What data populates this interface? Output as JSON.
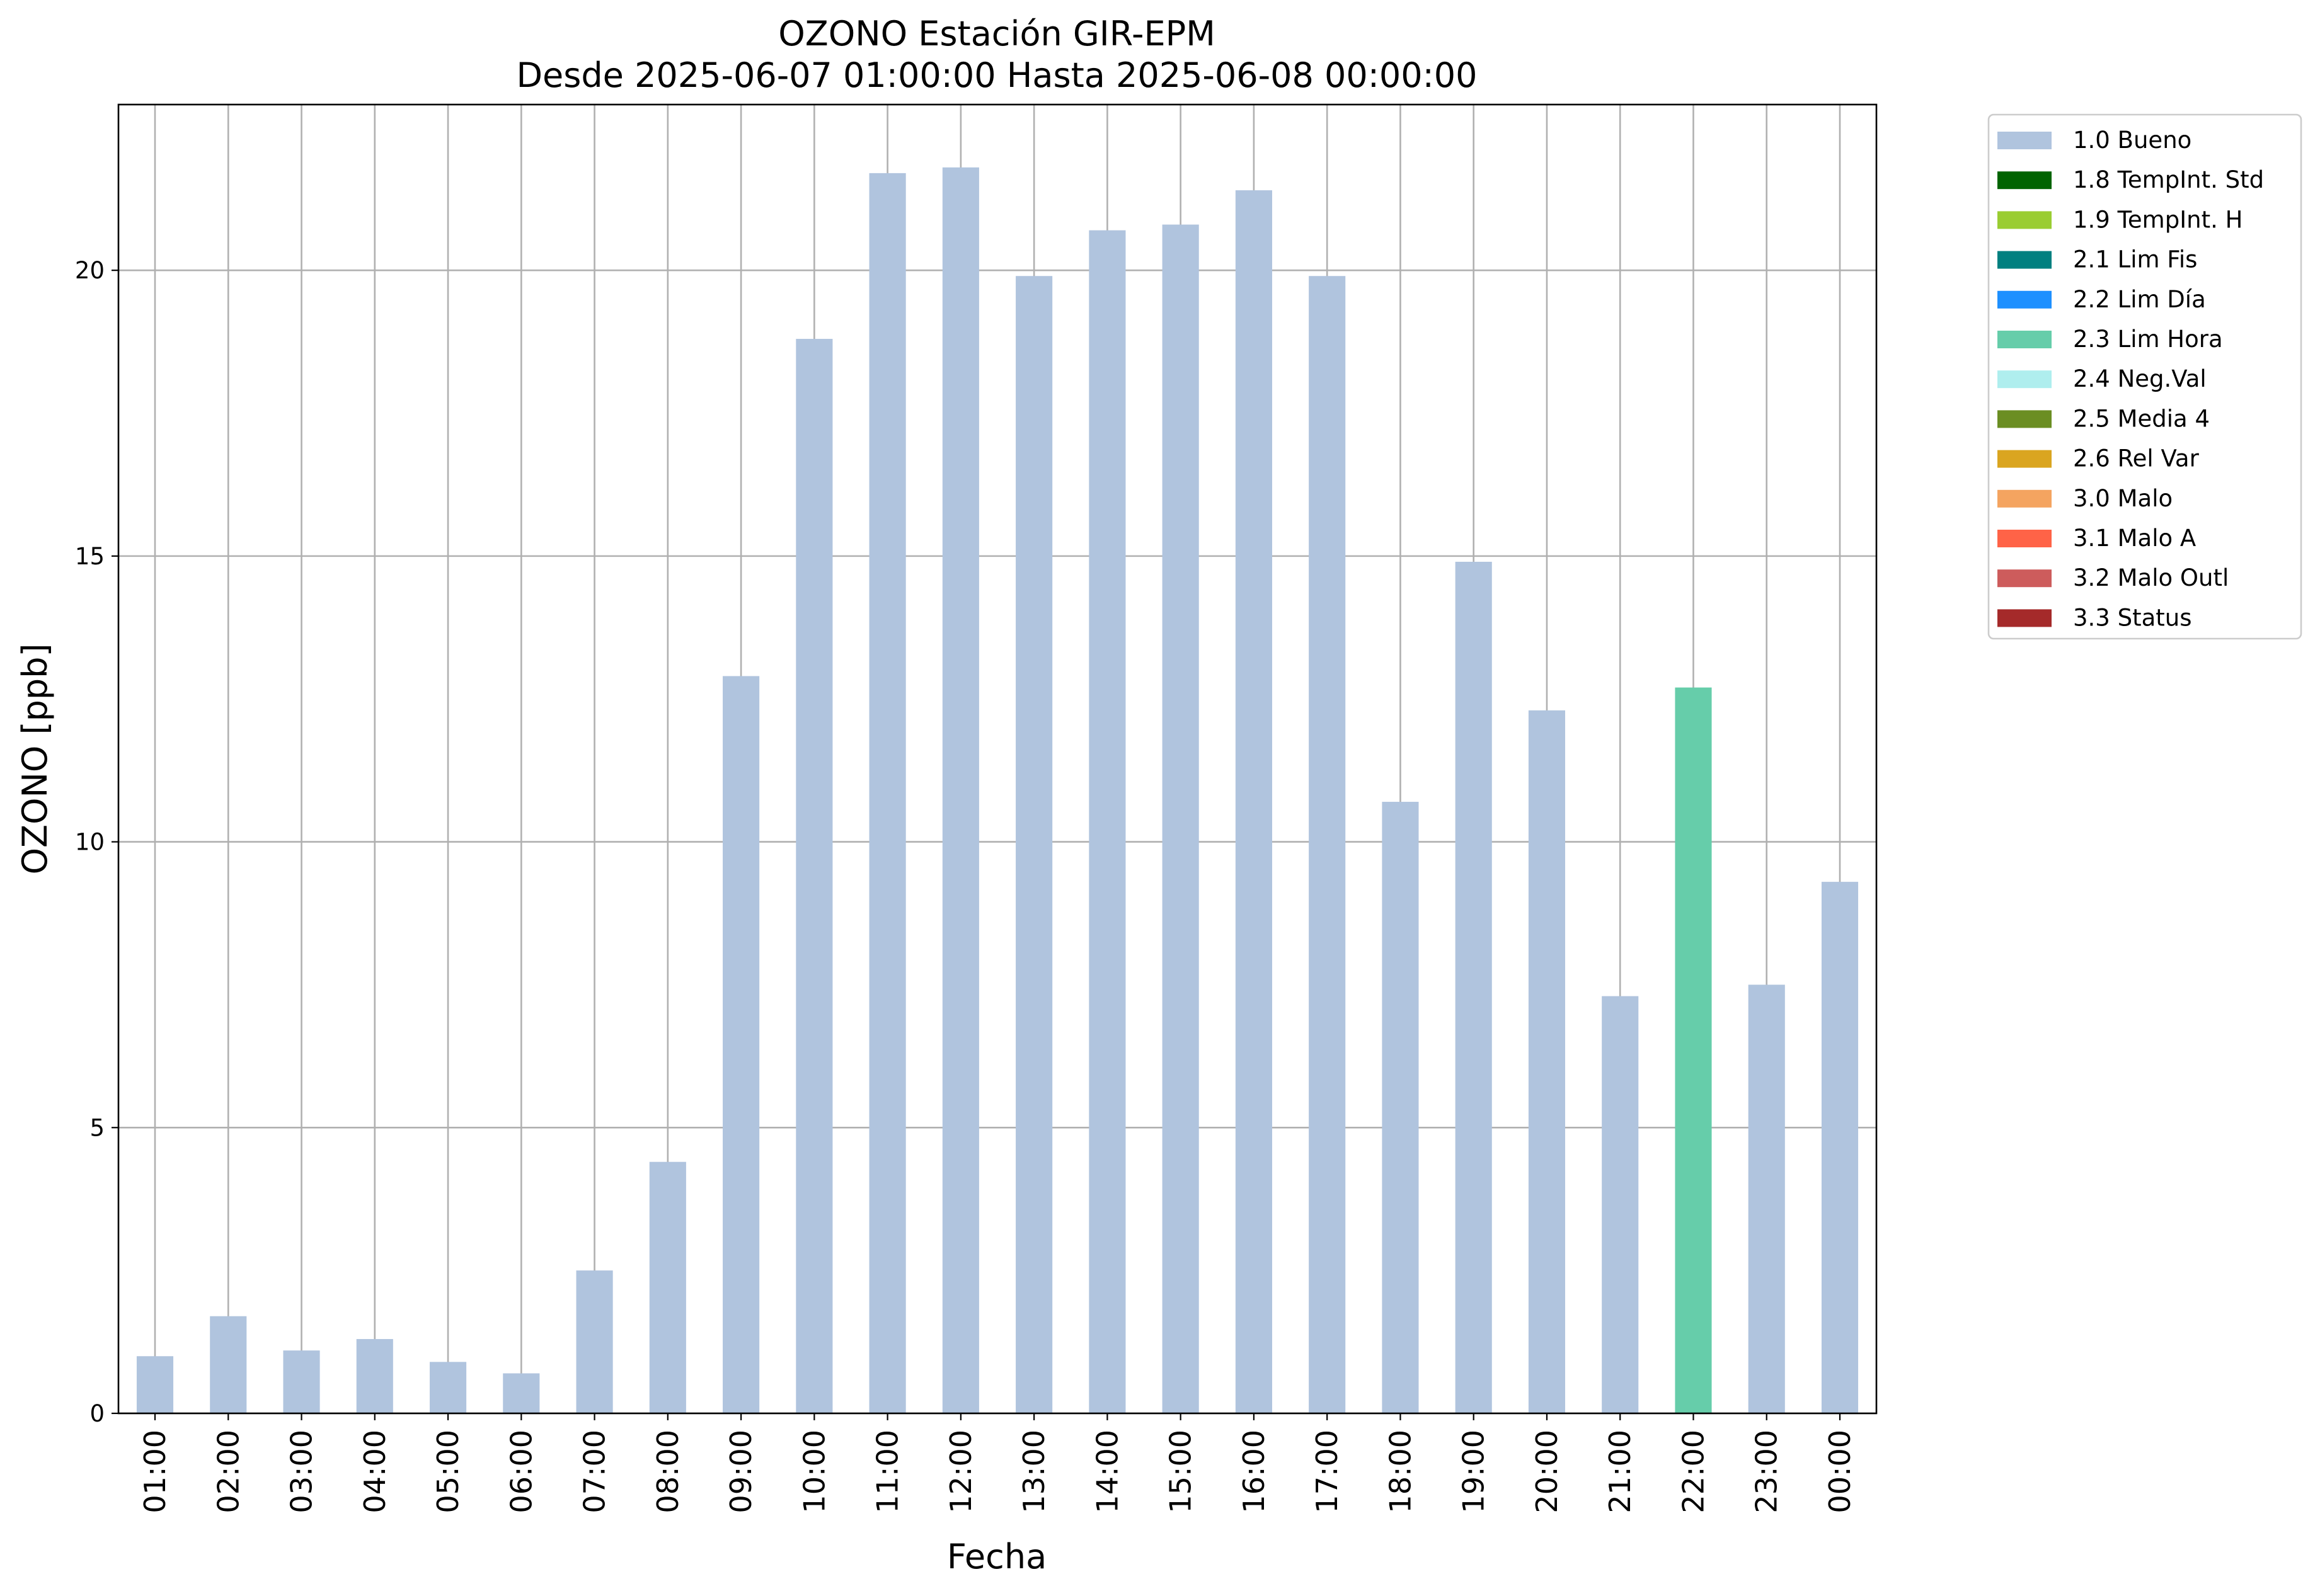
{
  "chart_data": {
    "type": "bar",
    "title": "OZONO Estación GIR-EPM",
    "subtitle": "Desde 2025-06-07 01:00:00 Hasta 2025-06-08 00:00:00",
    "xlabel": "Fecha",
    "ylabel": "OZONO [ppb]",
    "ylim": [
      0,
      22.9
    ],
    "yticks": [
      0,
      5,
      10,
      15,
      20
    ],
    "grid": true,
    "legend_placement": "outside-top-right",
    "categories": [
      "01:00",
      "02:00",
      "03:00",
      "04:00",
      "05:00",
      "06:00",
      "07:00",
      "08:00",
      "09:00",
      "10:00",
      "11:00",
      "12:00",
      "13:00",
      "14:00",
      "15:00",
      "16:00",
      "17:00",
      "18:00",
      "19:00",
      "20:00",
      "21:00",
      "22:00",
      "23:00",
      "00:00"
    ],
    "values": [
      1.0,
      1.7,
      1.1,
      1.3,
      0.9,
      0.7,
      2.5,
      4.4,
      12.9,
      18.8,
      21.7,
      21.8,
      19.9,
      20.7,
      20.8,
      21.4,
      19.9,
      10.7,
      14.9,
      12.3,
      7.3,
      12.7,
      7.5,
      9.3
    ],
    "flags": [
      "1.0 Bueno",
      "1.0 Bueno",
      "1.0 Bueno",
      "1.0 Bueno",
      "1.0 Bueno",
      "1.0 Bueno",
      "1.0 Bueno",
      "1.0 Bueno",
      "1.0 Bueno",
      "1.0 Bueno",
      "1.0 Bueno",
      "1.0 Bueno",
      "1.0 Bueno",
      "1.0 Bueno",
      "1.0 Bueno",
      "1.0 Bueno",
      "1.0 Bueno",
      "1.0 Bueno",
      "1.0 Bueno",
      "1.0 Bueno",
      "1.0 Bueno",
      "2.3 Lim Hora",
      "1.0 Bueno",
      "1.0 Bueno"
    ],
    "legend": [
      {
        "label": "1.0 Bueno",
        "color": "#b0c4de"
      },
      {
        "label": "1.8 TempInt. Std",
        "color": "#006400"
      },
      {
        "label": "1.9 TempInt. H",
        "color": "#9acd32"
      },
      {
        "label": "2.1 Lim Fis",
        "color": "#008080"
      },
      {
        "label": "2.2 Lim Día",
        "color": "#1e90ff"
      },
      {
        "label": "2.3 Lim Hora",
        "color": "#66cdaa"
      },
      {
        "label": "2.4 Neg.Val",
        "color": "#afeeee"
      },
      {
        "label": "2.5 Media 4",
        "color": "#6b8e23"
      },
      {
        "label": "2.6 Rel Var",
        "color": "#daa520"
      },
      {
        "label": "3.0 Malo",
        "color": "#f4a460"
      },
      {
        "label": "3.1 Malo A",
        "color": "#ff6347"
      },
      {
        "label": "3.2 Malo Outl",
        "color": "#cd5c5c"
      },
      {
        "label": "3.3 Status",
        "color": "#a52a2a"
      }
    ]
  }
}
